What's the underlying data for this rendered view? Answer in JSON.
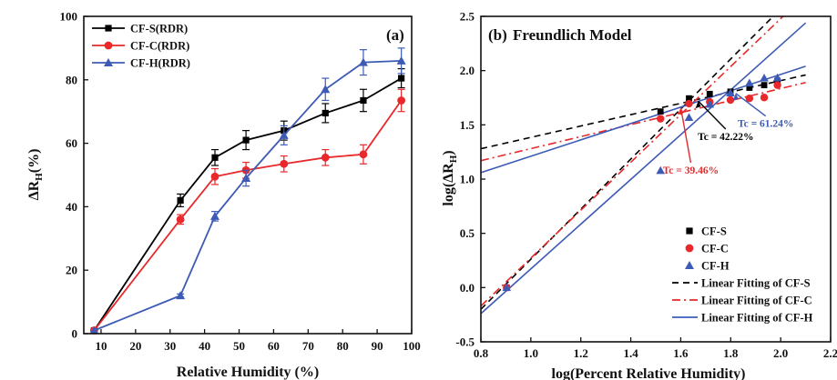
{
  "chart_data": [
    {
      "panel_label": "(a)",
      "type": "line",
      "xlabel": "Relative Humidity (%)",
      "ylabel_main": "ΔR",
      "ylabel_sub": "H",
      "ylabel_tail": "(%)",
      "xlim": [
        5,
        100
      ],
      "ylim": [
        0,
        100
      ],
      "xticks": [
        10,
        20,
        30,
        40,
        50,
        60,
        70,
        80,
        90,
        100
      ],
      "yticks": [
        0,
        20,
        40,
        60,
        80,
        100
      ],
      "grid": false,
      "legend_position": "top-left",
      "series": [
        {
          "name": "CF-S(RDR)",
          "color": "#000000",
          "marker": "square",
          "x": [
            8,
            33,
            43,
            52,
            63,
            75,
            86,
            97
          ],
          "y": [
            1,
            42,
            55.5,
            61,
            64,
            69.5,
            73.5,
            80.5
          ],
          "err": [
            0,
            2,
            2.5,
            3,
            3,
            3,
            3.5,
            3
          ]
        },
        {
          "name": "CF-C(RDR)",
          "color": "#e8282a",
          "marker": "circle",
          "x": [
            8,
            33,
            43,
            52,
            63,
            75,
            86,
            97
          ],
          "y": [
            1,
            36,
            49.5,
            51.5,
            53.5,
            55.5,
            56.5,
            73.5
          ],
          "err": [
            0,
            1.5,
            2.5,
            2.5,
            2.5,
            2.5,
            3,
            3.5
          ]
        },
        {
          "name": "CF-H(RDR)",
          "color": "#3d5bb5",
          "marker": "triangle",
          "x": [
            8,
            33,
            43,
            52,
            63,
            75,
            86,
            97
          ],
          "y": [
            1,
            12,
            37,
            49,
            62.5,
            77,
            85.5,
            86
          ],
          "err": [
            0,
            0.5,
            1.5,
            2.5,
            3,
            3.5,
            4,
            4
          ]
        }
      ]
    },
    {
      "panel_label": "(b)",
      "title": "Freundlich Model",
      "type": "scatter",
      "xlabel": "log(Percent Relative Humidity)",
      "ylabel_main": "log(ΔR",
      "ylabel_sub": "H",
      "ylabel_tail": ")",
      "xlim": [
        0.8,
        2.2
      ],
      "ylim": [
        -0.5,
        2.5
      ],
      "xticks": [
        0.8,
        1.0,
        1.2,
        1.4,
        1.6,
        1.8,
        2.0,
        2.2
      ],
      "yticks": [
        -0.5,
        0.0,
        0.5,
        1.0,
        1.5,
        2.0,
        2.5
      ],
      "grid": false,
      "legend_position": "bottom-right",
      "series": [
        {
          "name": "CF-S",
          "color": "#000000",
          "marker": "square",
          "x": [
            0.903,
            1.519,
            1.633,
            1.716,
            1.799,
            1.875,
            1.934,
            1.987
          ],
          "y": [
            0.0,
            1.623,
            1.744,
            1.785,
            1.806,
            1.842,
            1.866,
            1.906
          ]
        },
        {
          "name": "CF-C",
          "color": "#e8282a",
          "marker": "circle",
          "x": [
            0.903,
            1.519,
            1.633,
            1.716,
            1.799,
            1.875,
            1.934,
            1.987
          ],
          "y": [
            0.0,
            1.556,
            1.695,
            1.712,
            1.729,
            1.744,
            1.752,
            1.866
          ]
        },
        {
          "name": "CF-H",
          "color": "#3d5bb5",
          "marker": "triangle",
          "x": [
            0.903,
            1.519,
            1.633,
            1.716,
            1.799,
            1.875,
            1.934,
            1.987
          ],
          "y": [
            0.0,
            1.079,
            1.568,
            1.69,
            1.795,
            1.886,
            1.932,
            1.934
          ]
        }
      ],
      "fit_lines": [
        {
          "name": "Linear Fitting of CF-S",
          "color": "#000000",
          "style": "dashed",
          "segments": [
            [
              [
                0.8,
                1.28
              ],
              [
                2.1,
                1.96
              ]
            ],
            [
              [
                0.8,
                -0.2
              ],
              [
                2.1,
                2.8
              ]
            ]
          ]
        },
        {
          "name": "Linear Fitting of CF-C",
          "color": "#e8282a",
          "style": "dashdot",
          "segments": [
            [
              [
                0.8,
                1.17
              ],
              [
                2.1,
                1.89
              ]
            ],
            [
              [
                0.8,
                -0.17
              ],
              [
                2.1,
                2.7
              ]
            ]
          ]
        },
        {
          "name": "Linear Fitting of CF-H",
          "color": "#3d5bb5",
          "style": "solid",
          "segments": [
            [
              [
                0.8,
                1.06
              ],
              [
                2.1,
                2.04
              ]
            ],
            [
              [
                0.8,
                -0.24
              ],
              [
                2.1,
                2.44
              ]
            ]
          ]
        }
      ],
      "annotations": [
        {
          "text": "Tc = 42.22%",
          "color": "#000000",
          "point": [
            1.67,
            1.72
          ],
          "label": [
            1.78,
            1.36
          ]
        },
        {
          "text": "Tc = 39.46%",
          "color": "#e8282a",
          "point": [
            1.6,
            1.66
          ],
          "label": [
            1.64,
            1.05
          ]
        },
        {
          "text": "Tc = 61.24%",
          "color": "#3d5bb5",
          "point": [
            1.82,
            1.79
          ],
          "label": [
            1.94,
            1.48
          ]
        }
      ]
    }
  ]
}
